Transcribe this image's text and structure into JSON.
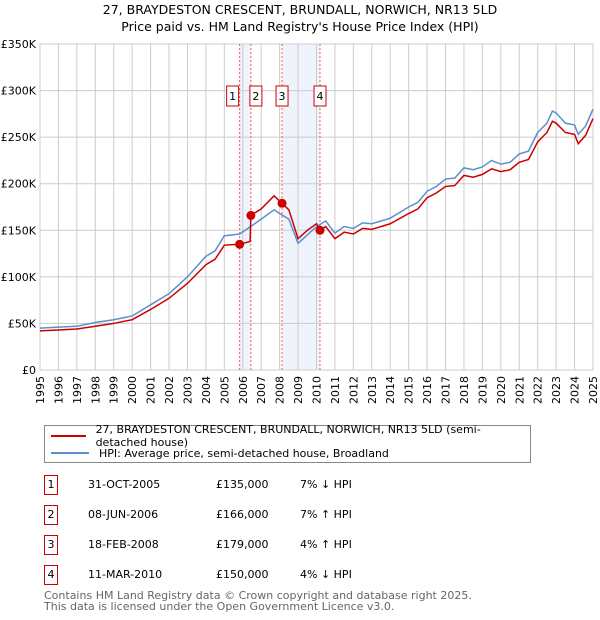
{
  "chart_data": {
    "type": "line",
    "title": "27, BRAYDESTON CRESCENT, BRUNDALL, NORWICH, NR13 5LD",
    "subtitle": "Price paid vs. HM Land Registry's House Price Index (HPI)",
    "xlim": [
      1995,
      2025
    ],
    "ylim": [
      0,
      350000
    ],
    "x_ticks": [
      "1995",
      "1996",
      "1997",
      "1998",
      "1999",
      "2000",
      "2001",
      "2002",
      "2003",
      "2004",
      "2005",
      "2006",
      "2007",
      "2008",
      "2009",
      "2010",
      "2011",
      "2012",
      "2013",
      "2014",
      "2015",
      "2016",
      "2017",
      "2018",
      "2019",
      "2020",
      "2021",
      "2022",
      "2023",
      "2024",
      "2025"
    ],
    "y_ticks": [
      {
        "v": 0,
        "label": "£0"
      },
      {
        "v": 50000,
        "label": "£50K"
      },
      {
        "v": 100000,
        "label": "£100K"
      },
      {
        "v": 150000,
        "label": "£150K"
      },
      {
        "v": 200000,
        "label": "£200K"
      },
      {
        "v": 250000,
        "label": "£250K"
      },
      {
        "v": 300000,
        "label": "£300K"
      },
      {
        "v": 350000,
        "label": "£350K"
      }
    ],
    "grid": true,
    "series": [
      {
        "name": "27, BRAYDESTON CRESCENT, BRUNDALL, NORWICH, NR13 5LD (semi-detached house)",
        "color": "#cc0000",
        "x": [
          1995,
          1996,
          1997,
          1998,
          1999,
          2000,
          2001,
          2002,
          2003,
          2004,
          2004.5,
          2005,
          2005.83,
          2006.4,
          2006.44,
          2007,
          2007.7,
          2008.13,
          2008.5,
          2009,
          2009.5,
          2010,
          2010.19,
          2010.5,
          2011,
          2011.5,
          2012,
          2012.5,
          2013,
          2014,
          2015,
          2015.5,
          2016,
          2016.5,
          2017,
          2017.5,
          2018,
          2018.5,
          2019,
          2019.5,
          2020,
          2020.5,
          2021,
          2021.5,
          2022,
          2022.5,
          2022.8,
          2023,
          2023.5,
          2024,
          2024.2,
          2024.6,
          2025
        ],
        "y": [
          42000,
          43000,
          44000,
          47000,
          50000,
          54000,
          65000,
          77000,
          93000,
          113000,
          119000,
          134000,
          135000,
          138000,
          166000,
          173000,
          187000,
          179000,
          172000,
          141000,
          150000,
          157000,
          150000,
          154000,
          141000,
          148000,
          146000,
          152000,
          151000,
          157000,
          168000,
          173000,
          185000,
          190000,
          197000,
          198000,
          209000,
          207000,
          210000,
          216000,
          213000,
          215000,
          223000,
          226000,
          245000,
          255000,
          267000,
          265000,
          255000,
          253000,
          243000,
          252000,
          270000
        ]
      },
      {
        "name": "HPI: Average price, semi-detached house, Broadland",
        "color": "#5b8fd0",
        "x": [
          1995,
          1996,
          1997,
          1998,
          1999,
          2000,
          2001,
          2002,
          2003,
          2004,
          2004.5,
          2005,
          2005.83,
          2006.5,
          2007,
          2007.7,
          2008,
          2008.5,
          2009,
          2009.5,
          2010,
          2010.5,
          2011,
          2011.5,
          2012,
          2012.5,
          2013,
          2014,
          2015,
          2015.5,
          2016,
          2016.5,
          2017,
          2017.5,
          2018,
          2018.5,
          2019,
          2019.5,
          2020,
          2020.5,
          2021,
          2021.5,
          2022,
          2022.5,
          2022.8,
          2023,
          2023.5,
          2024,
          2024.2,
          2024.6,
          2025
        ],
        "y": [
          45000,
          46000,
          47000,
          51000,
          54000,
          58000,
          70000,
          82000,
          100000,
          122000,
          128000,
          144000,
          146000,
          155000,
          162000,
          172000,
          168000,
          162000,
          136000,
          145000,
          154000,
          160000,
          147000,
          154000,
          152000,
          158000,
          157000,
          163000,
          175000,
          180000,
          192000,
          197000,
          205000,
          206000,
          217000,
          215000,
          218000,
          225000,
          221000,
          223000,
          232000,
          235000,
          255000,
          265000,
          278000,
          276000,
          265000,
          263000,
          253000,
          262000,
          280000
        ]
      }
    ],
    "sales": [
      {
        "id": "1",
        "x": 2005.83,
        "date": "31-OCT-2005",
        "price": 135000,
        "price_label": "£135,000",
        "hpi": "7% ↓ HPI"
      },
      {
        "id": "2",
        "x": 2006.44,
        "date": "08-JUN-2006",
        "price": 166000,
        "price_label": "£166,000",
        "hpi": "7% ↑ HPI"
      },
      {
        "id": "3",
        "x": 2008.13,
        "date": "18-FEB-2008",
        "price": 179000,
        "price_label": "£179,000",
        "hpi": "4% ↑ HPI"
      },
      {
        "id": "4",
        "x": 2010.19,
        "date": "11-MAR-2010",
        "price": 150000,
        "price_label": "£150,000",
        "hpi": "4% ↓ HPI"
      }
    ],
    "shaded_ranges": [
      [
        2005.83,
        2006.44
      ],
      [
        2008.13,
        2010.19
      ]
    ]
  },
  "footer": {
    "line1": "Contains HM Land Registry data © Crown copyright and database right 2025.",
    "line2": "This data is licensed under the Open Government Licence v3.0."
  }
}
